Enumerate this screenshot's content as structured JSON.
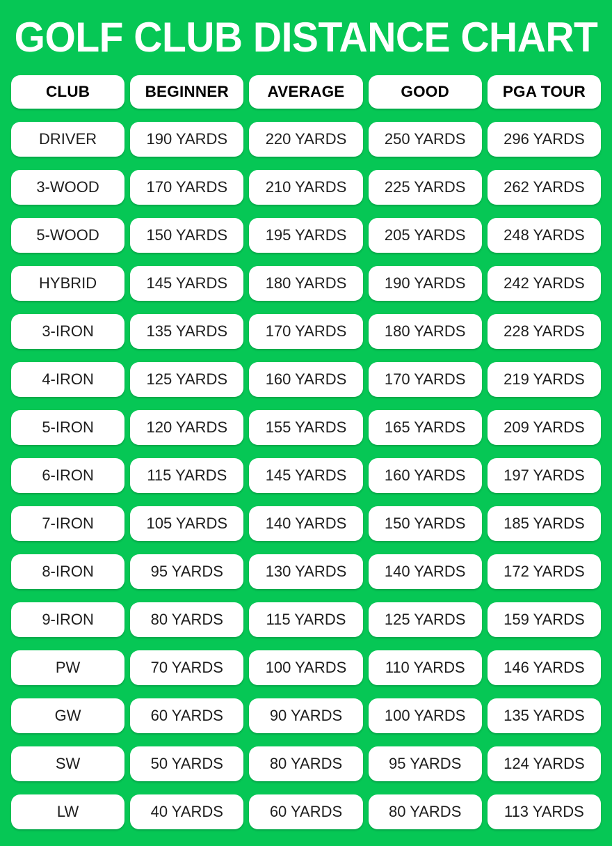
{
  "title": "GOLF CLUB DISTANCE CHART",
  "colors": {
    "background": "#06C755",
    "cell_background": "#FFFFFF",
    "header_text": "#000000",
    "cell_text": "#1E1E1E",
    "title_text": "#FFFFFF"
  },
  "table": {
    "headers": [
      "CLUB",
      "BEGINNER",
      "AVERAGE",
      "GOOD",
      "PGA TOUR"
    ],
    "rows": [
      [
        "DRIVER",
        "190 YARDS",
        "220 YARDS",
        "250 YARDS",
        "296 YARDS"
      ],
      [
        "3-WOOD",
        "170 YARDS",
        "210 YARDS",
        "225 YARDS",
        "262 YARDS"
      ],
      [
        "5-WOOD",
        "150 YARDS",
        "195 YARDS",
        "205 YARDS",
        "248 YARDS"
      ],
      [
        "HYBRID",
        "145 YARDS",
        "180 YARDS",
        "190 YARDS",
        "242 YARDS"
      ],
      [
        "3-IRON",
        "135 YARDS",
        "170 YARDS",
        "180 YARDS",
        "228 YARDS"
      ],
      [
        "4-IRON",
        "125 YARDS",
        "160 YARDS",
        "170 YARDS",
        "219 YARDS"
      ],
      [
        "5-IRON",
        "120 YARDS",
        "155 YARDS",
        "165 YARDS",
        "209 YARDS"
      ],
      [
        "6-IRON",
        "115 YARDS",
        "145 YARDS",
        "160 YARDS",
        "197 YARDS"
      ],
      [
        "7-IRON",
        "105 YARDS",
        "140 YARDS",
        "150 YARDS",
        "185 YARDS"
      ],
      [
        "8-IRON",
        "95 YARDS",
        "130 YARDS",
        "140 YARDS",
        "172 YARDS"
      ],
      [
        "9-IRON",
        "80 YARDS",
        "115 YARDS",
        "125 YARDS",
        "159 YARDS"
      ],
      [
        "PW",
        "70 YARDS",
        "100 YARDS",
        "110 YARDS",
        "146 YARDS"
      ],
      [
        "GW",
        "60 YARDS",
        "90 YARDS",
        "100 YARDS",
        "135 YARDS"
      ],
      [
        "SW",
        "50 YARDS",
        "80 YARDS",
        "95 YARDS",
        "124 YARDS"
      ],
      [
        "LW",
        "40 YARDS",
        "60 YARDS",
        "80 YARDS",
        "113 YARDS"
      ]
    ]
  },
  "chart_data": {
    "type": "table",
    "title": "GOLF CLUB DISTANCE CHART",
    "unit": "yards",
    "columns": [
      "CLUB",
      "BEGINNER",
      "AVERAGE",
      "GOOD",
      "PGA TOUR"
    ],
    "categories": [
      "DRIVER",
      "3-WOOD",
      "5-WOOD",
      "HYBRID",
      "3-IRON",
      "4-IRON",
      "5-IRON",
      "6-IRON",
      "7-IRON",
      "8-IRON",
      "9-IRON",
      "PW",
      "GW",
      "SW",
      "LW"
    ],
    "series": [
      {
        "name": "BEGINNER",
        "values": [
          190,
          170,
          150,
          145,
          135,
          125,
          120,
          115,
          105,
          95,
          80,
          70,
          60,
          50,
          40
        ]
      },
      {
        "name": "AVERAGE",
        "values": [
          220,
          210,
          195,
          180,
          170,
          160,
          155,
          145,
          140,
          130,
          115,
          100,
          90,
          80,
          60
        ]
      },
      {
        "name": "GOOD",
        "values": [
          250,
          225,
          205,
          190,
          180,
          170,
          165,
          160,
          150,
          140,
          125,
          110,
          100,
          95,
          80
        ]
      },
      {
        "name": "PGA TOUR",
        "values": [
          296,
          262,
          248,
          242,
          228,
          219,
          209,
          197,
          185,
          172,
          159,
          146,
          135,
          124,
          113
        ]
      }
    ]
  }
}
